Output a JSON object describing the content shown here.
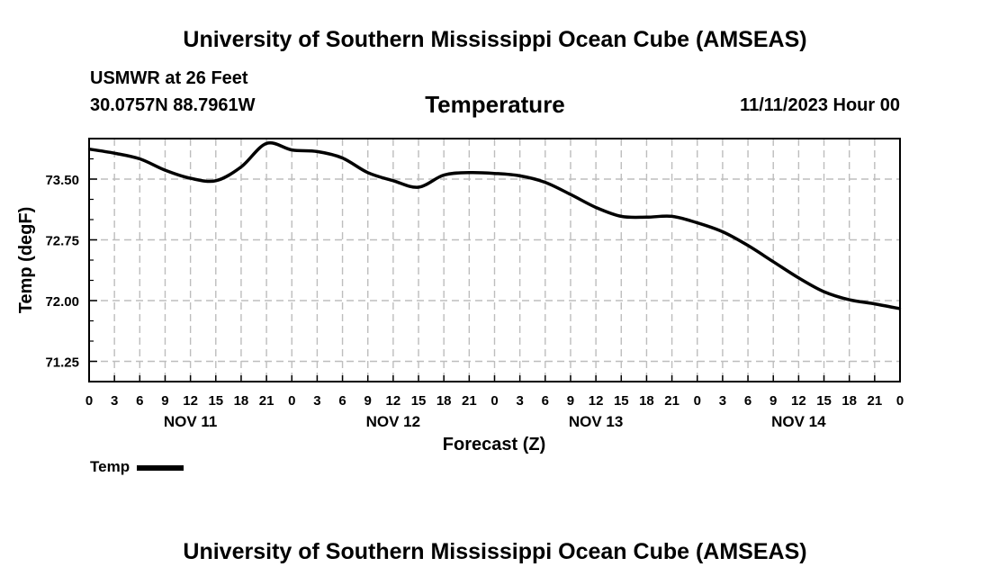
{
  "header": {
    "title": "University of Southern Mississippi Ocean Cube (AMSEAS)",
    "station": "USMWR at 26 Feet",
    "coordinates": "30.0757N  88.7961W",
    "date_hour": "11/11/2023 Hour 00"
  },
  "footer": {
    "title": "University of Southern Mississippi Ocean Cube (AMSEAS)"
  },
  "chart_data": {
    "type": "line",
    "title": "Temperature",
    "xlabel": "Forecast (Z)",
    "ylabel": "Temp (degF)",
    "ylim": [
      71.0,
      74.0
    ],
    "yticks": [
      71.25,
      72.0,
      72.75,
      73.5
    ],
    "ytick_labels": [
      "71.25",
      "72.00",
      "72.75",
      "73.50"
    ],
    "xlim": [
      0,
      96
    ],
    "xticks": [
      0,
      3,
      6,
      9,
      12,
      15,
      18,
      21,
      24,
      27,
      30,
      33,
      36,
      39,
      42,
      45,
      48,
      51,
      54,
      57,
      60,
      63,
      66,
      69,
      72,
      75,
      78,
      81,
      84,
      87,
      90,
      93,
      96
    ],
    "xtick_labels": [
      "0",
      "3",
      "6",
      "9",
      "12",
      "15",
      "18",
      "21",
      "0",
      "3",
      "6",
      "9",
      "12",
      "15",
      "18",
      "21",
      "0",
      "3",
      "6",
      "9",
      "12",
      "15",
      "18",
      "21",
      "0",
      "3",
      "6",
      "9",
      "12",
      "15",
      "18",
      "21",
      "0"
    ],
    "day_labels": [
      {
        "label": "NOV 11",
        "hour": 12
      },
      {
        "label": "NOV 12",
        "hour": 36
      },
      {
        "label": "NOV 13",
        "hour": 60
      },
      {
        "label": "NOV 14",
        "hour": 84
      }
    ],
    "grid": true,
    "legend": "bottom-left",
    "series": [
      {
        "name": "Temp",
        "color": "#000000",
        "x": [
          0,
          3,
          6,
          9,
          12,
          15,
          18,
          21,
          24,
          27,
          30,
          33,
          36,
          39,
          42,
          45,
          48,
          51,
          54,
          57,
          60,
          63,
          66,
          69,
          72,
          75,
          78,
          81,
          84,
          87,
          90,
          93,
          96
        ],
        "values": [
          73.87,
          73.82,
          73.75,
          73.61,
          73.51,
          73.48,
          73.65,
          73.94,
          73.86,
          73.84,
          73.76,
          73.58,
          73.48,
          73.4,
          73.55,
          73.58,
          73.57,
          73.54,
          73.46,
          73.31,
          73.15,
          73.04,
          73.03,
          73.04,
          72.96,
          72.85,
          72.68,
          72.48,
          72.28,
          72.11,
          72.01,
          71.96,
          71.9
        ]
      }
    ]
  }
}
